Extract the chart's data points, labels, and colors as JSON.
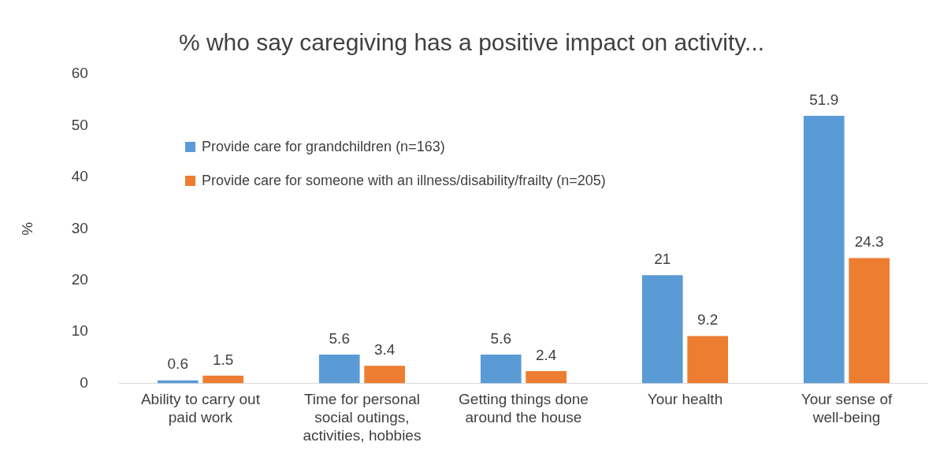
{
  "chart_data": {
    "type": "bar",
    "title": "% who say caregiving has a positive impact on activity...",
    "ylabel": "%",
    "categories": [
      "Ability to carry out paid work",
      "Time for personal social outings, activities, hobbies",
      "Getting things done around the house",
      "Your health",
      "Your sense of well-being"
    ],
    "series": [
      {
        "name": "Provide care for grandchildren (n=163)",
        "color": "#5b9bd5",
        "values": [
          0.6,
          5.6,
          5.6,
          21,
          51.9
        ]
      },
      {
        "name": "Provide care for someone with an illness/disability/frailty (n=205)",
        "color": "#ed7d31",
        "values": [
          1.5,
          3.4,
          2.4,
          9.2,
          24.3
        ]
      }
    ],
    "ylim": [
      0,
      60
    ],
    "yticks": [
      0,
      10,
      20,
      30,
      40,
      50,
      60
    ],
    "grid": false,
    "legend": "top left",
    "data_labels": true
  }
}
